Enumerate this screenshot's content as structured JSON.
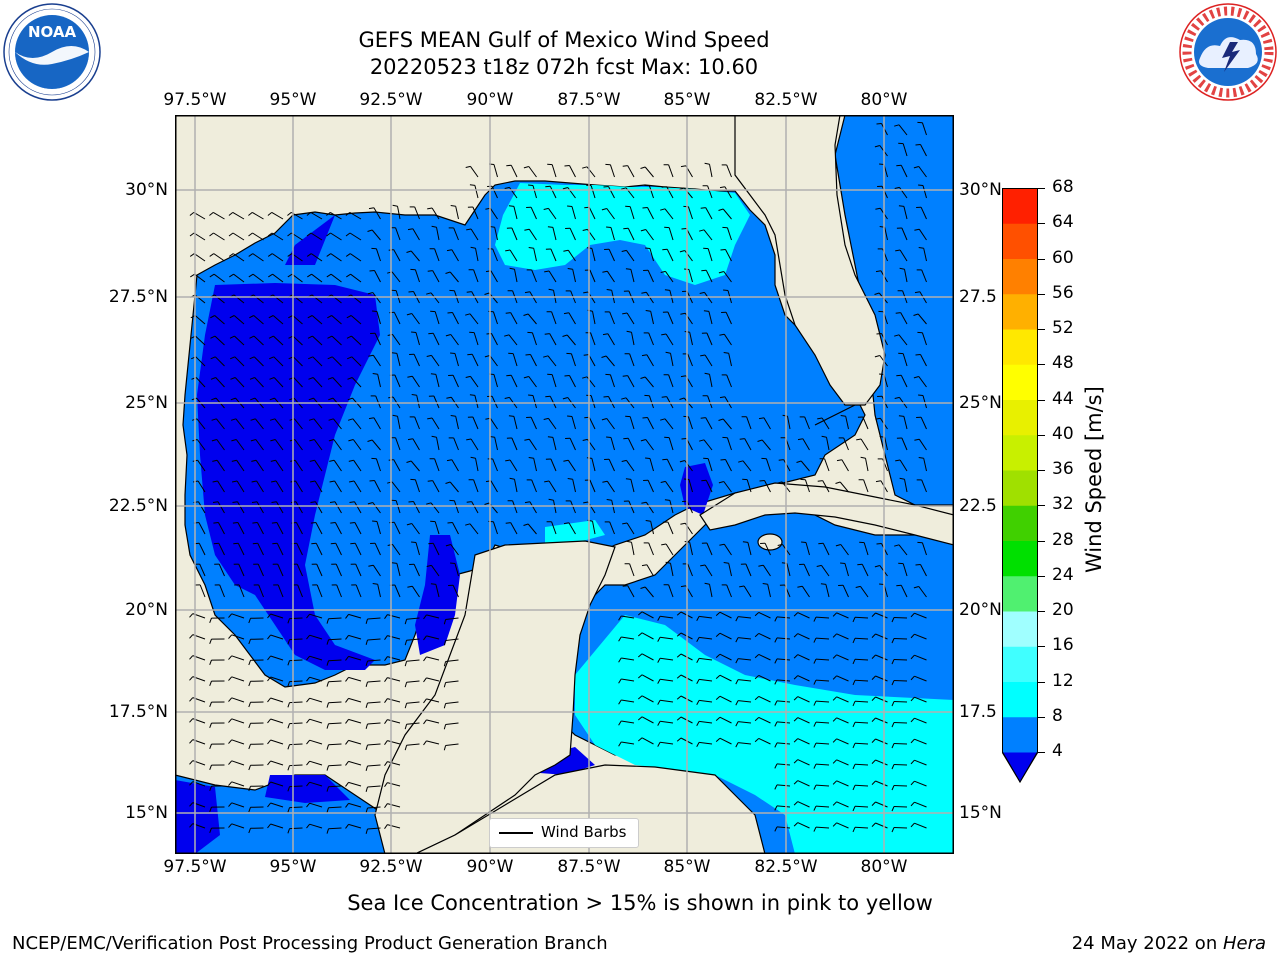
{
  "header": {
    "title_line1": "GEFS MEAN Gulf of Mexico Wind Speed",
    "title_line2": "20220523 t18z 072h fcst   Max: 10.60"
  },
  "logos": {
    "noaa": {
      "text": "NOAA",
      "ring_text": "NATIONAL OCEANIC AND ATMOSPHERIC ADMINISTRATION · U.S. DEPARTMENT OF COMMERCE"
    },
    "nws": {
      "ring_text": "NATIONAL WEATHER SERVICE"
    }
  },
  "map": {
    "lon_labels": [
      "97.5°W",
      "95°W",
      "92.5°W",
      "90°W",
      "87.5°W",
      "85°W",
      "82.5°W",
      "80°W"
    ],
    "lat_labels": [
      "30°N",
      "27.5°N",
      "25°N",
      "22.5°N",
      "20°N",
      "17.5°N",
      "15°N"
    ],
    "right_lat_labels": [
      "30°N",
      "27.5",
      "25°N",
      "22.5",
      "20°N",
      "17.5",
      "15°N"
    ],
    "legend": {
      "label": "Wind Barbs"
    },
    "colors": {
      "land": "#efeddc",
      "coast": "#000000",
      "grid": "#b0b0b0"
    }
  },
  "colorbar": {
    "label": "Wind Speed [m/s]",
    "ticks": [
      "68",
      "64",
      "60",
      "56",
      "52",
      "48",
      "44",
      "40",
      "36",
      "32",
      "28",
      "24",
      "20",
      "16",
      "12",
      "8",
      "4"
    ],
    "colors": [
      "#0000ee",
      "#0080ff",
      "#00ffff",
      "#40ffff",
      "#a0ffff",
      "#50f070",
      "#00e000",
      "#40d000",
      "#a0e000",
      "#c8f000",
      "#e8f000",
      "#ffff00",
      "#ffe800",
      "#ffb000",
      "#ff8000",
      "#ff5000",
      "#ff2000",
      "#ff0000"
    ]
  },
  "footer": {
    "note": "Sea Ice Concentration > 15% is shown in pink to yellow",
    "left": "NCEP/EMC/Verification Post Processing Product Generation Branch",
    "right_prefix": "24 May 2022 on ",
    "right_host": "Hera"
  }
}
